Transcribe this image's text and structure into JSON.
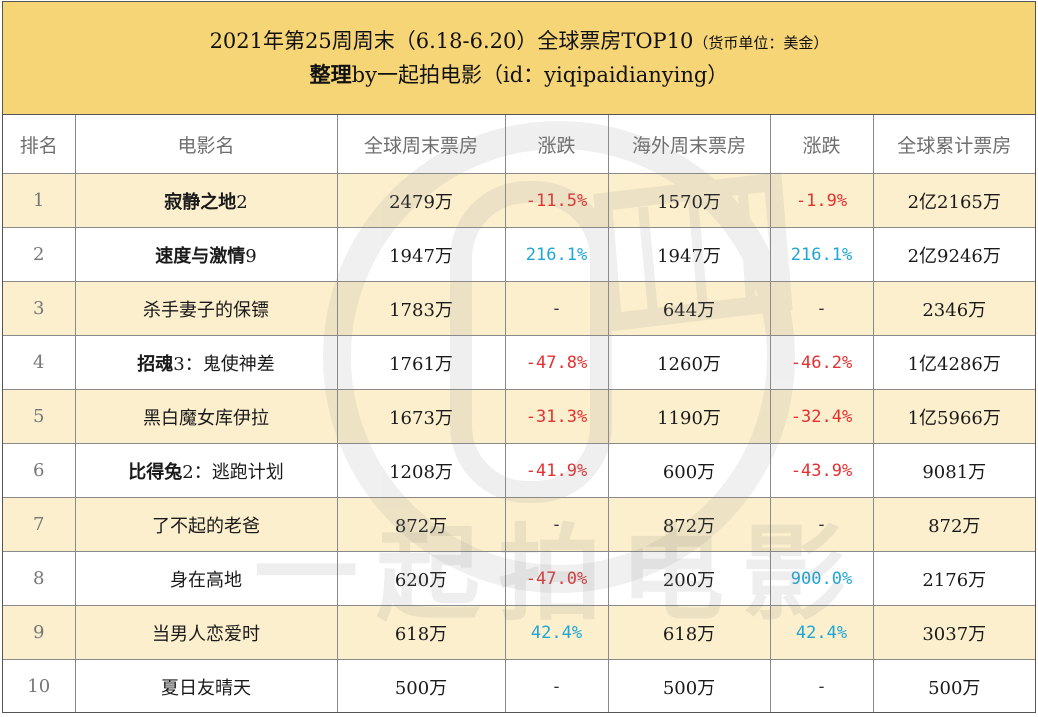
{
  "title": {
    "line1": "2021年第25周周末（6.18-6.20）全球票房TOP10",
    "unit": "（货币单位：美金）",
    "line2_prefix": "整理",
    "line2_suffix": "by一起拍电影（id：yiqipaidianying）"
  },
  "watermark": {
    "text": "一起拍电影"
  },
  "headers": [
    "排名",
    "电影名",
    "全球周末票房",
    "涨跌",
    "海外周末票房",
    "涨跌",
    "全球累计票房"
  ],
  "rows": [
    {
      "rank": "1",
      "title_bold": "寂静之地",
      "title_rest": "2",
      "global_weekend": "2479万",
      "global_change": "-11.5%",
      "global_dir": "neg",
      "overseas_weekend": "1570万",
      "overseas_change": "-1.9%",
      "overseas_dir": "neg",
      "total": "2亿2165万"
    },
    {
      "rank": "2",
      "title_bold": "速度与激情",
      "title_rest": "9",
      "global_weekend": "1947万",
      "global_change": "216.1%",
      "global_dir": "pos",
      "overseas_weekend": "1947万",
      "overseas_change": "216.1%",
      "overseas_dir": "pos",
      "total": "2亿9246万"
    },
    {
      "rank": "3",
      "title_bold": "",
      "title_rest": "杀手妻子的保镖",
      "global_weekend": "1783万",
      "global_change": "-",
      "global_dir": "dash",
      "overseas_weekend": "644万",
      "overseas_change": "-",
      "overseas_dir": "dash",
      "total": "2346万"
    },
    {
      "rank": "4",
      "title_bold": "招魂",
      "title_rest": "3：鬼使神差",
      "global_weekend": "1761万",
      "global_change": "-47.8%",
      "global_dir": "neg",
      "overseas_weekend": "1260万",
      "overseas_change": "-46.2%",
      "overseas_dir": "neg",
      "total": "1亿4286万"
    },
    {
      "rank": "5",
      "title_bold": "",
      "title_rest": "黑白魔女库伊拉",
      "global_weekend": "1673万",
      "global_change": "-31.3%",
      "global_dir": "neg",
      "overseas_weekend": "1190万",
      "overseas_change": "-32.4%",
      "overseas_dir": "neg",
      "total": "1亿5966万"
    },
    {
      "rank": "6",
      "title_bold": "比得兔",
      "title_rest": "2：逃跑计划",
      "global_weekend": "1208万",
      "global_change": "-41.9%",
      "global_dir": "neg",
      "overseas_weekend": "600万",
      "overseas_change": "-43.9%",
      "overseas_dir": "neg",
      "total": "9081万"
    },
    {
      "rank": "7",
      "title_bold": "",
      "title_rest": "了不起的老爸",
      "global_weekend": "872万",
      "global_change": "-",
      "global_dir": "dash",
      "overseas_weekend": "872万",
      "overseas_change": "-",
      "overseas_dir": "dash",
      "total": "872万"
    },
    {
      "rank": "8",
      "title_bold": "",
      "title_rest": "身在高地",
      "global_weekend": "620万",
      "global_change": "-47.0%",
      "global_dir": "neg",
      "overseas_weekend": "200万",
      "overseas_change": "900.0%",
      "overseas_dir": "pos",
      "total": "2176万"
    },
    {
      "rank": "9",
      "title_bold": "",
      "title_rest": "当男人恋爱时",
      "global_weekend": "618万",
      "global_change": "42.4%",
      "global_dir": "pos",
      "overseas_weekend": "618万",
      "overseas_change": "42.4%",
      "overseas_dir": "pos",
      "total": "3037万"
    },
    {
      "rank": "10",
      "title_bold": "",
      "title_rest": "夏日友晴天",
      "global_weekend": "500万",
      "global_change": "-",
      "global_dir": "dash",
      "overseas_weekend": "500万",
      "overseas_change": "-",
      "overseas_dir": "dash",
      "total": "500万"
    }
  ],
  "colors": {
    "title_bg": "#f6d576",
    "row_highlight": "#fcefcd",
    "negative": "#e53030",
    "positive": "#1ea6d6"
  }
}
